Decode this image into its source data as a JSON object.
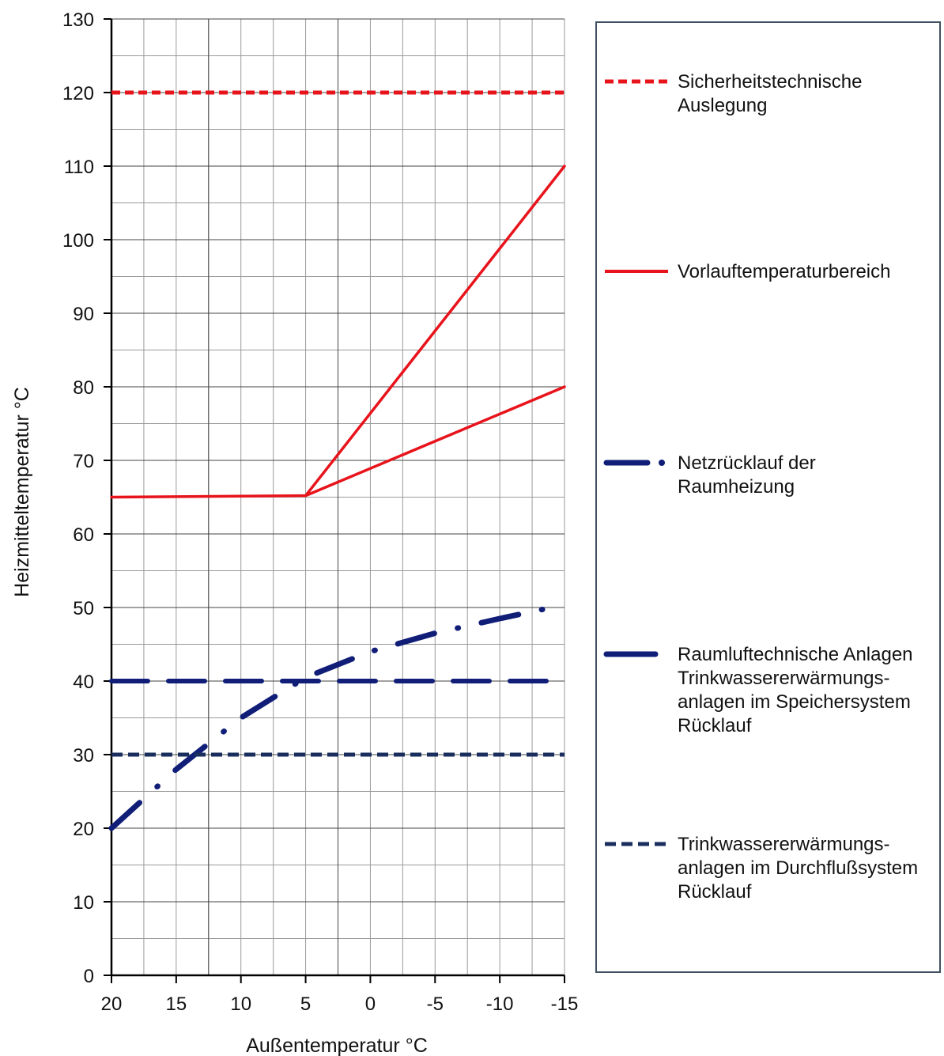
{
  "chart_data": {
    "type": "line",
    "xlabel": "Außentemperatur °C",
    "ylabel": "Heizmitteltemperatur °C",
    "xlim": [
      20,
      -15
    ],
    "ylim": [
      0,
      130
    ],
    "x_ticks": [
      20,
      15,
      10,
      5,
      0,
      -5,
      -10,
      -15
    ],
    "x_tick_labels": [
      "20",
      "15",
      "10",
      "5",
      "0",
      "-5",
      "-10",
      "-15"
    ],
    "y_ticks": [
      0,
      10,
      20,
      30,
      40,
      50,
      60,
      70,
      80,
      90,
      100,
      110,
      120,
      130
    ],
    "y_tick_labels": [
      "0",
      "10",
      "20",
      "30",
      "40",
      "50",
      "60",
      "70",
      "80",
      "90",
      "100",
      "110",
      "120",
      "130"
    ],
    "grid": true,
    "legend_position": "right",
    "series": [
      {
        "name": "Sicherheitstechnische\nAuslegung",
        "color": "#e8141c",
        "style": "short-dash",
        "points": [
          [
            20,
            120
          ],
          [
            -15,
            120
          ]
        ]
      },
      {
        "name": "Vorlauftemperaturbereich",
        "color": "#e8141c",
        "style": "solid",
        "segments": [
          [
            [
              20,
              65
            ],
            [
              5,
              65.2
            ],
            [
              -15,
              110
            ]
          ],
          [
            [
              5,
              65.2
            ],
            [
              -15,
              80
            ]
          ]
        ]
      },
      {
        "name": "Netzrücklauf der\nRaumheizung",
        "color": "#101e78",
        "style": "dash-dot",
        "points": [
          [
            20,
            20
          ],
          [
            15,
            28
          ],
          [
            10,
            35
          ],
          [
            5,
            40.5
          ],
          [
            0,
            44
          ],
          [
            -5,
            46.5
          ],
          [
            -10,
            48.5
          ],
          [
            -14,
            50
          ]
        ]
      },
      {
        "name": "Raumluftechnische Anlagen\nTrinkwassererwärmungs-\nanlagen im Speichersystem\nRücklauf",
        "color": "#101e78",
        "style": "long-dash",
        "points": [
          [
            20,
            40
          ],
          [
            -15,
            40
          ]
        ]
      },
      {
        "name": "Trinkwassererwärmungs-\nanlagen im Durchflußsystem\nRücklauf",
        "color": "#1a2e5e",
        "style": "short-dash",
        "points": [
          [
            20,
            30
          ],
          [
            -15,
            30
          ]
        ]
      }
    ]
  }
}
